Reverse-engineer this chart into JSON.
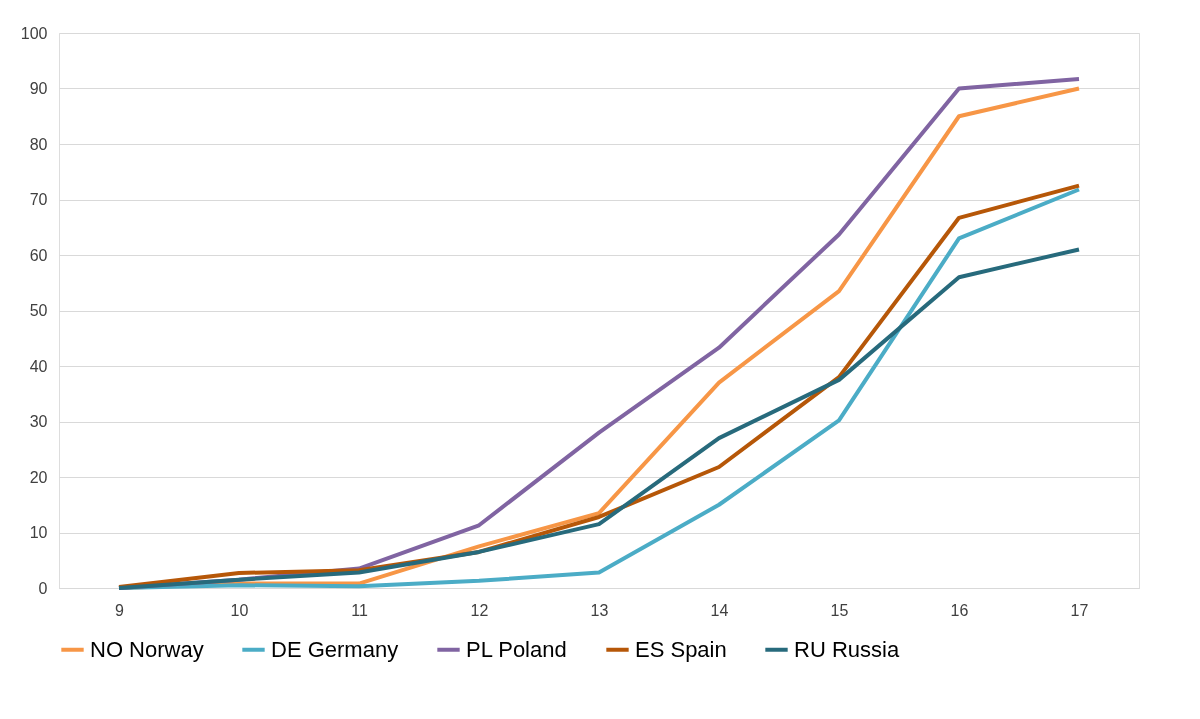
{
  "chart_data": {
    "type": "line",
    "categories": [
      "9",
      "10",
      "11",
      "12",
      "13",
      "14",
      "15",
      "16",
      "17"
    ],
    "ylim": [
      0,
      100
    ],
    "yticks": [
      0,
      10,
      20,
      30,
      40,
      50,
      60,
      70,
      80,
      90,
      100
    ],
    "grid": "y",
    "legend": "bottom",
    "line_style": "solid",
    "marker": "none",
    "series": [
      {
        "name": "NO Norway",
        "color": "#f79646",
        "values": [
          0,
          0.8,
          0.8,
          7.5,
          13.5,
          37,
          53.5,
          85,
          90
        ]
      },
      {
        "name": "DE Germany",
        "color": "#4bacc6",
        "values": [
          0,
          0.5,
          0.3,
          1.3,
          2.8,
          15,
          30.2,
          63,
          71.8
        ]
      },
      {
        "name": "PL Poland",
        "color": "#8064a2",
        "values": [
          0,
          1.5,
          3.5,
          11.3,
          28,
          43.3,
          63.7,
          90,
          91.7
        ]
      },
      {
        "name": "ES Spain",
        "color": "#b65708",
        "values": [
          0.2,
          2.7,
          3.2,
          6.5,
          12.8,
          21.8,
          38,
          66.7,
          72.5
        ]
      },
      {
        "name": "RU Russia",
        "color": "#276a7c",
        "values": [
          0,
          1.5,
          2.8,
          6.5,
          11.5,
          27,
          37.5,
          56,
          61
        ]
      }
    ]
  }
}
